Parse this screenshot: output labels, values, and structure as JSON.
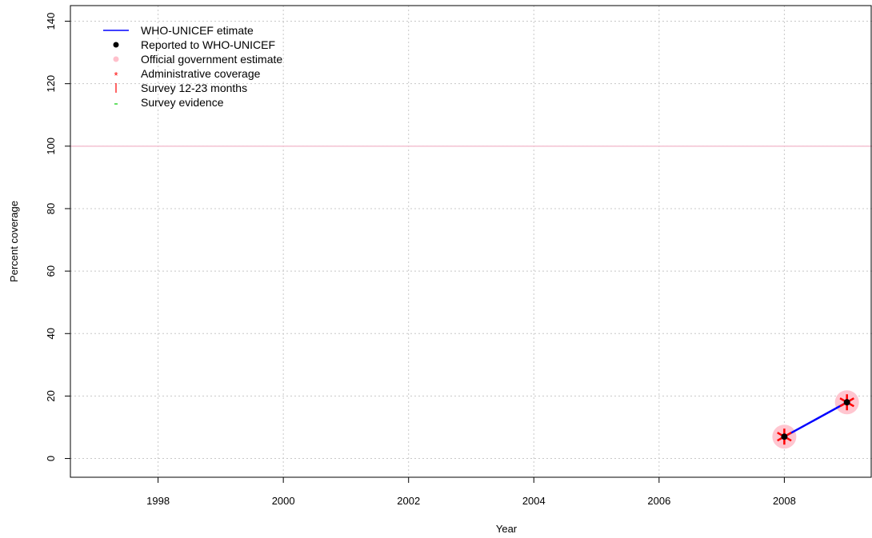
{
  "chart_data": {
    "type": "line",
    "title": "",
    "xlabel": "Year",
    "ylabel": "Percent coverage",
    "xlim": [
      1996.6,
      2009.4
    ],
    "ylim": [
      -6,
      145
    ],
    "x_ticks": [
      1998,
      2000,
      2002,
      2004,
      2006,
      2008
    ],
    "y_ticks": [
      0,
      20,
      40,
      60,
      80,
      100,
      120,
      140
    ],
    "grid": true,
    "reference_line": {
      "y": 100,
      "color": "#f4c2d2"
    },
    "legend": {
      "placement": "top-left",
      "entries": [
        {
          "label": "WHO-UNICEF etimate",
          "symbol": "line",
          "color": "#0000ff"
        },
        {
          "label": "Reported to WHO-UNICEF",
          "symbol": "dot",
          "color": "#000000"
        },
        {
          "label": "Official government estimate",
          "symbol": "dot",
          "color": "#ffc0cb"
        },
        {
          "label": "Administrative coverage",
          "symbol": "star",
          "color": "#ff0000"
        },
        {
          "label": "Survey 12-23 months",
          "symbol": "bar",
          "color": "#ff0000"
        },
        {
          "label": "Survey evidence",
          "symbol": "dash",
          "color": "#00cc00"
        }
      ]
    },
    "series": [
      {
        "name": "WHO-UNICEF etimate",
        "x": [
          2008,
          2009
        ],
        "y": [
          7,
          18
        ],
        "color": "#0000ff"
      },
      {
        "name": "Reported to WHO-UNICEF",
        "x": [
          2008,
          2009
        ],
        "y": [
          7,
          18
        ],
        "color": "#000000"
      },
      {
        "name": "Official government estimate",
        "x": [
          2008,
          2009
        ],
        "y": [
          7,
          18
        ],
        "color": "#ffc0cb"
      },
      {
        "name": "Administrative coverage",
        "x": [
          2008,
          2009
        ],
        "y": [
          7,
          18
        ],
        "color": "#ff0000"
      }
    ]
  }
}
